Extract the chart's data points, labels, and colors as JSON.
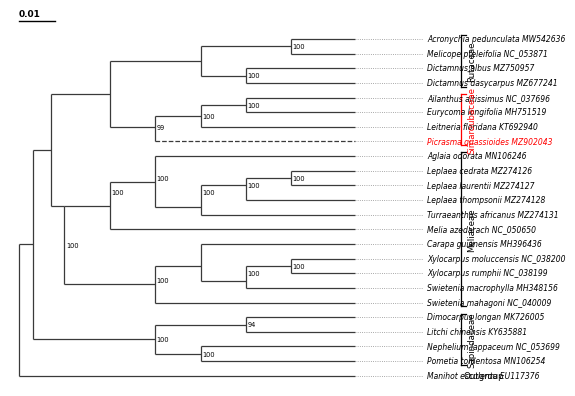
{
  "taxa": [
    {
      "name": "Acronychia pedunculata MW542636",
      "y": 23,
      "family": "Rutaceae"
    },
    {
      "name": "Melicope pteleifolia NC_053871",
      "y": 22,
      "family": "Rutaceae"
    },
    {
      "name": "Dictamnus albus MZ750957",
      "y": 21,
      "family": "Rutaceae"
    },
    {
      "name": "Dictamnus dasycarpus MZ677241",
      "y": 20,
      "family": "Rutaceae"
    },
    {
      "name": "Ailanthus altissimus NC_037696",
      "y": 19,
      "family": "Simaroubaceae"
    },
    {
      "name": "Eurycoma longifolia MH751519",
      "y": 18,
      "family": "Simaroubaceae"
    },
    {
      "name": "Leitneria floridana KT692940",
      "y": 17,
      "family": "Simaroubaceae"
    },
    {
      "name": "Picrasma quassioides MZ902043",
      "y": 16,
      "family": "Simaroubaceae",
      "highlight": true
    },
    {
      "name": "Aglaia odorata MN106246",
      "y": 15,
      "family": "Meliaceae"
    },
    {
      "name": "Leplaea cedrata MZ274126",
      "y": 14,
      "family": "Meliaceae"
    },
    {
      "name": "Leplaea laurentii MZ274127",
      "y": 13,
      "family": "Meliaceae"
    },
    {
      "name": "Leplaea thompsonii MZ274128",
      "y": 12,
      "family": "Meliaceae"
    },
    {
      "name": "Turraeanthus africanus MZ274131",
      "y": 11,
      "family": "Meliaceae"
    },
    {
      "name": "Melia azedarach NC_050650",
      "y": 10,
      "family": "Meliaceae"
    },
    {
      "name": "Carapa guianensis MH396436",
      "y": 9,
      "family": "Meliaceae"
    },
    {
      "name": "Xylocarpus moluccensis NC_038200",
      "y": 8,
      "family": "Meliaceae"
    },
    {
      "name": "Xylocarpus rumphii NC_038199",
      "y": 7,
      "family": "Meliaceae"
    },
    {
      "name": "Swietenia macrophylla MH348156",
      "y": 6,
      "family": "Meliaceae"
    },
    {
      "name": "Swietenia mahagoni NC_040009",
      "y": 5,
      "family": "Meliaceae"
    },
    {
      "name": "Dimocarpus longan MK726005",
      "y": 4,
      "family": "Sapindaceae"
    },
    {
      "name": "Litchi chinensis KY635881",
      "y": 3,
      "family": "Sapindaceae"
    },
    {
      "name": "Nephelium lappaceum NC_053699",
      "y": 2,
      "family": "Sapindaceae"
    },
    {
      "name": "Pometia tomentosa MN106254",
      "y": 1,
      "family": "Sapindaceae"
    },
    {
      "name": "Manihot esculenta EU117376",
      "y": 0,
      "family": "Outgroup"
    }
  ],
  "background_color": "white",
  "line_color": "#3a3a3a",
  "bootstrap_fontsize": 4.8,
  "taxa_fontsize": 5.5,
  "family_fontsize": 6.2
}
